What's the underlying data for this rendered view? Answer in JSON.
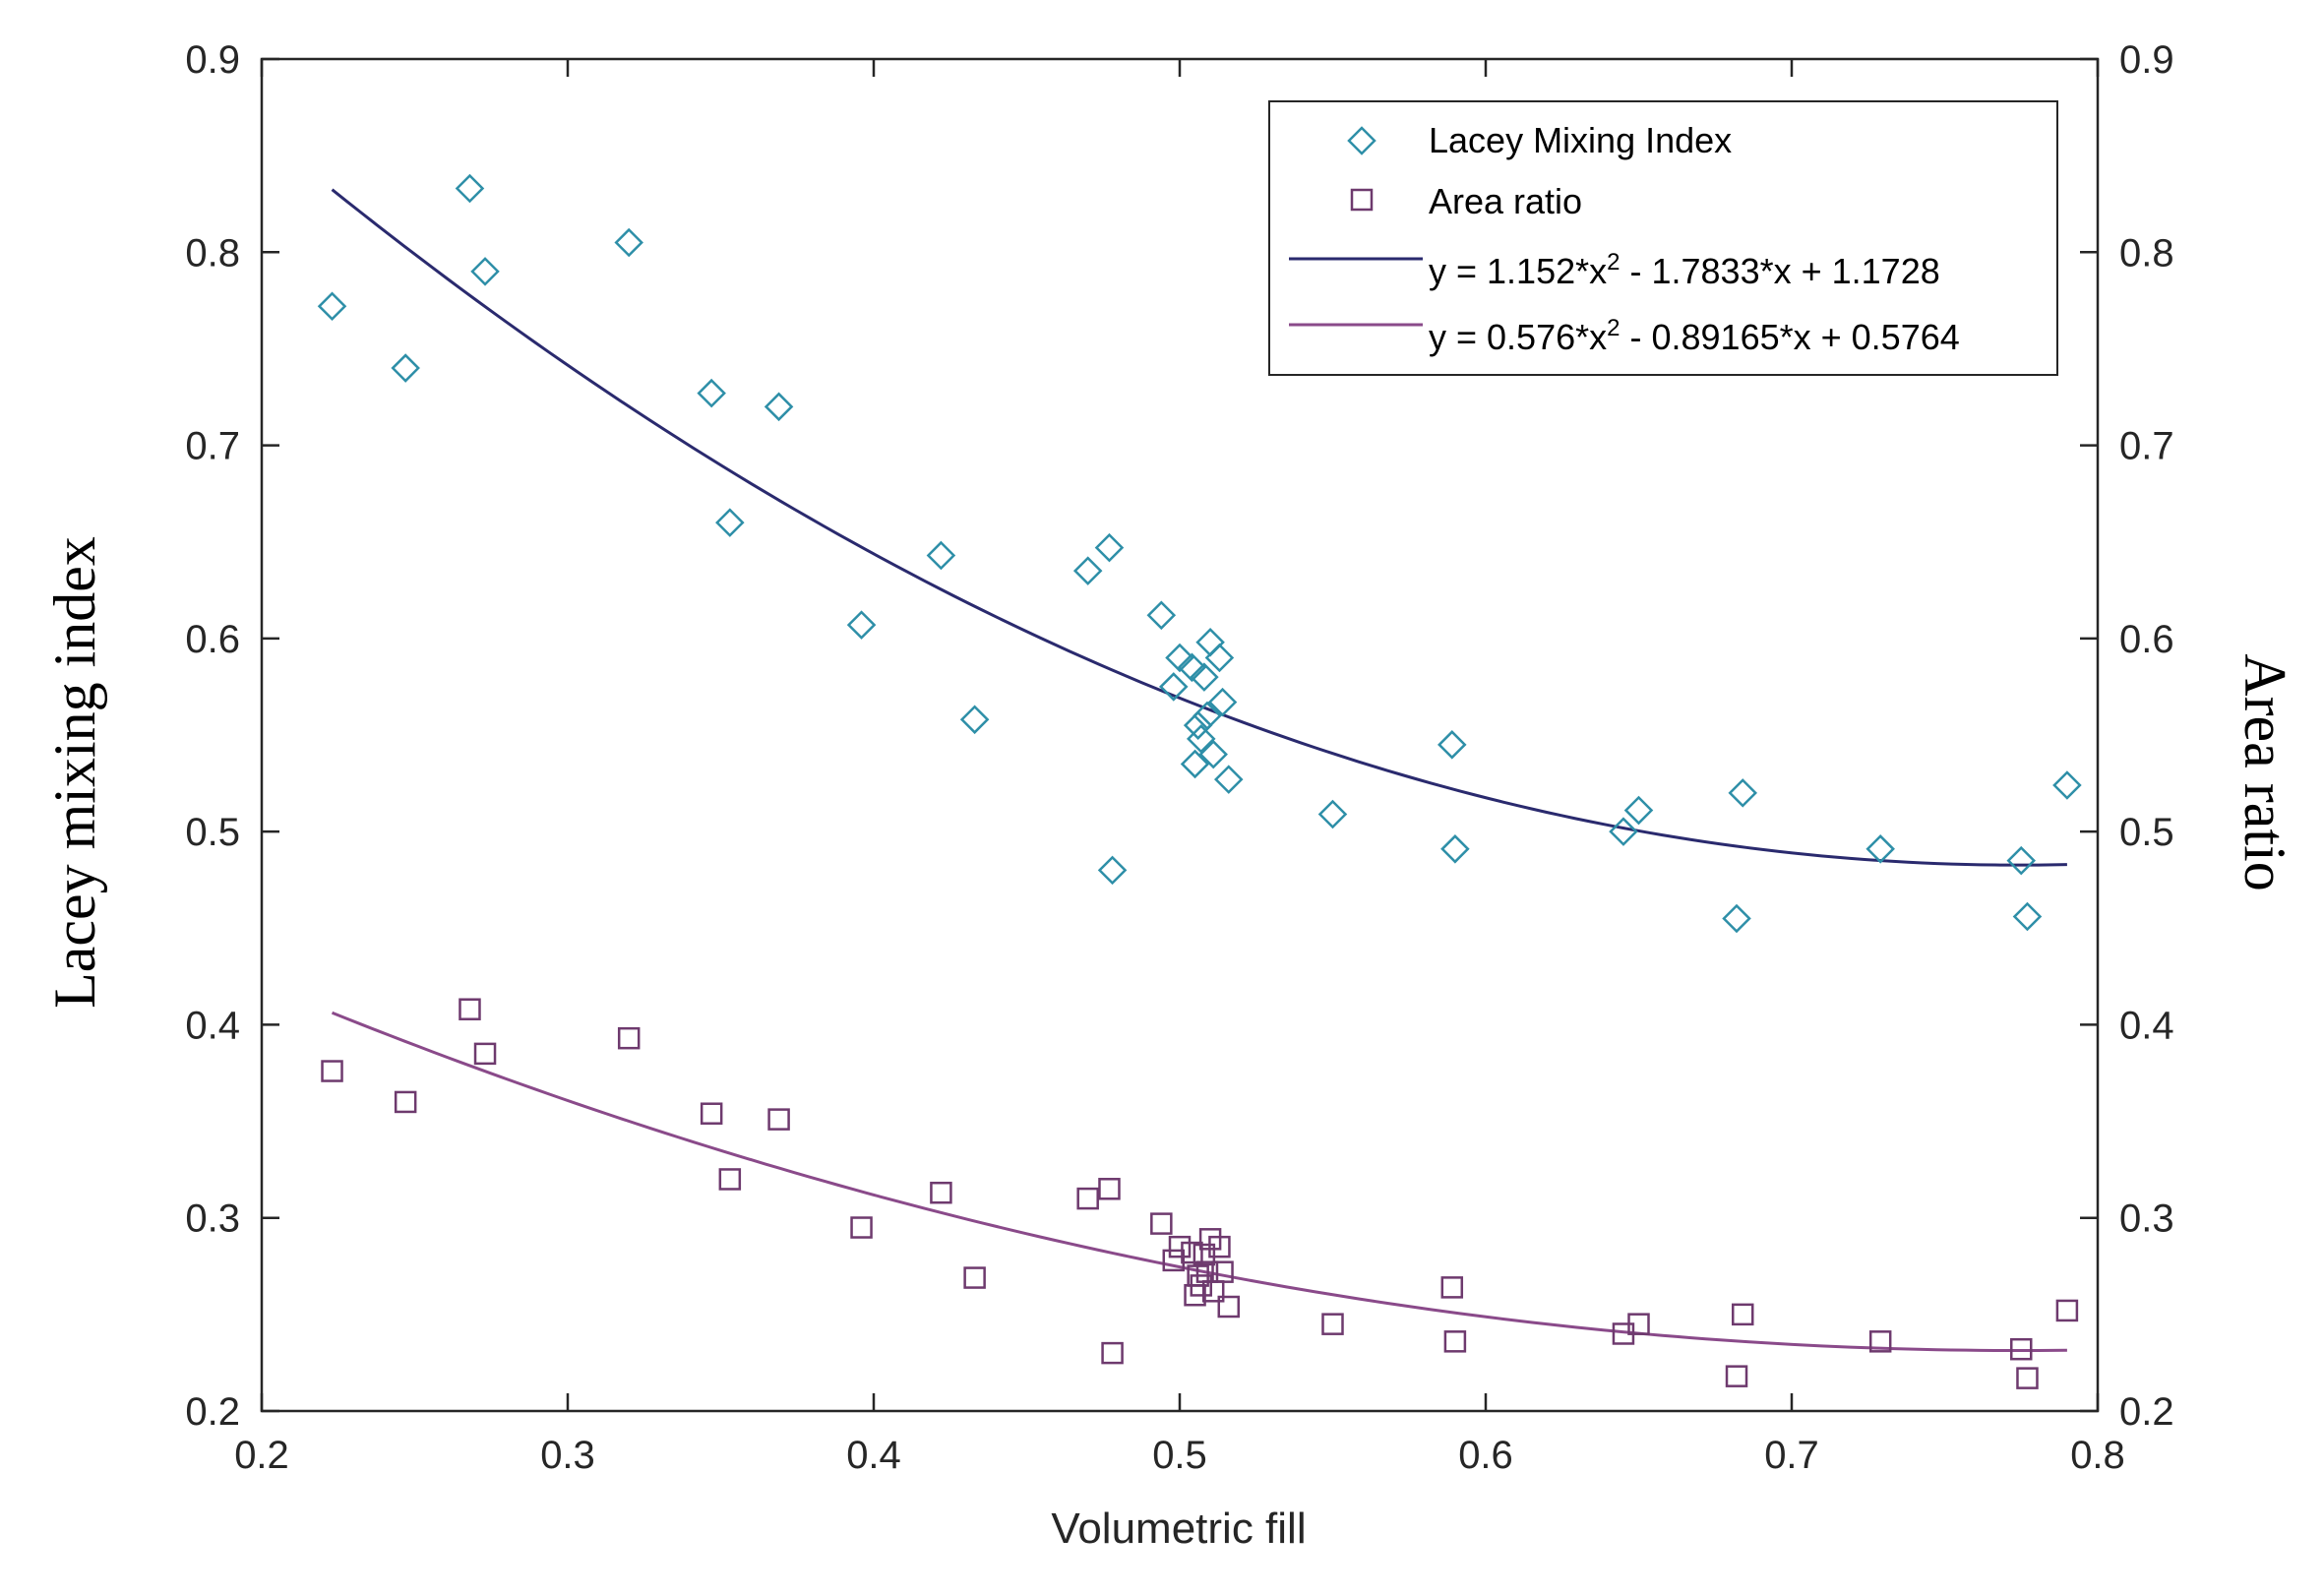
{
  "colors": {
    "lacey_marker": "#2e8fa8",
    "area_marker": "#6e3a6e",
    "fit1_line": "#2a2a6e",
    "fit2_line": "#8a4a8a",
    "axis": "#262626",
    "background": "#ffffff"
  },
  "chart_data": {
    "type": "scatter",
    "title": "",
    "xlabel": "Volumetric fill",
    "ylabel_left": "Lacey mixing index",
    "ylabel_right": "Area ratio",
    "xlim": [
      0.2,
      0.8
    ],
    "ylim": [
      0.2,
      0.9
    ],
    "xticks": [
      "0.2",
      "0.3",
      "0.4",
      "0.5",
      "0.6",
      "0.7",
      "0.8"
    ],
    "yticks": [
      "0.2",
      "0.3",
      "0.4",
      "0.5",
      "0.6",
      "0.7",
      "0.8",
      "0.9"
    ],
    "grid": false,
    "legend_position": "top-right",
    "legend": [
      {
        "label": "Lacey Mixing Index",
        "kind": "marker",
        "marker": "diamond",
        "color_key": "lacey_marker"
      },
      {
        "label": "Area ratio",
        "kind": "marker",
        "marker": "square",
        "color_key": "area_marker"
      },
      {
        "label": "y = 1.152*x",
        "sup": "2",
        "rest": " - 1.7833*x + 1.1728",
        "kind": "line",
        "color_key": "fit1_line"
      },
      {
        "label": "y = 0.576*x",
        "sup": "2",
        "rest": " - 0.89165*x + 0.5764",
        "kind": "line",
        "color_key": "fit2_line"
      }
    ],
    "series": [
      {
        "name": "Lacey Mixing Index",
        "marker": "diamond",
        "color_key": "lacey_marker",
        "points": [
          [
            0.223,
            0.772
          ],
          [
            0.247,
            0.74
          ],
          [
            0.268,
            0.833
          ],
          [
            0.273,
            0.79
          ],
          [
            0.32,
            0.805
          ],
          [
            0.347,
            0.727
          ],
          [
            0.353,
            0.66
          ],
          [
            0.369,
            0.72
          ],
          [
            0.396,
            0.607
          ],
          [
            0.422,
            0.643
          ],
          [
            0.433,
            0.558
          ],
          [
            0.47,
            0.635
          ],
          [
            0.477,
            0.647
          ],
          [
            0.478,
            0.48
          ],
          [
            0.494,
            0.612
          ],
          [
            0.498,
            0.575
          ],
          [
            0.5,
            0.59
          ],
          [
            0.504,
            0.585
          ],
          [
            0.505,
            0.535
          ],
          [
            0.506,
            0.555
          ],
          [
            0.507,
            0.548
          ],
          [
            0.508,
            0.58
          ],
          [
            0.509,
            0.56
          ],
          [
            0.51,
            0.598
          ],
          [
            0.511,
            0.54
          ],
          [
            0.513,
            0.59
          ],
          [
            0.514,
            0.567
          ],
          [
            0.516,
            0.527
          ],
          [
            0.55,
            0.509
          ],
          [
            0.589,
            0.545
          ],
          [
            0.59,
            0.491
          ],
          [
            0.645,
            0.5
          ],
          [
            0.65,
            0.511
          ],
          [
            0.682,
            0.455
          ],
          [
            0.684,
            0.52
          ],
          [
            0.729,
            0.491
          ],
          [
            0.775,
            0.485
          ],
          [
            0.777,
            0.456
          ],
          [
            0.79,
            0.524
          ]
        ]
      },
      {
        "name": "Area ratio",
        "marker": "square",
        "color_key": "area_marker",
        "points": [
          [
            0.223,
            0.376
          ],
          [
            0.247,
            0.36
          ],
          [
            0.268,
            0.408
          ],
          [
            0.273,
            0.385
          ],
          [
            0.32,
            0.393
          ],
          [
            0.347,
            0.354
          ],
          [
            0.353,
            0.32
          ],
          [
            0.369,
            0.351
          ],
          [
            0.396,
            0.295
          ],
          [
            0.422,
            0.313
          ],
          [
            0.433,
            0.269
          ],
          [
            0.47,
            0.31
          ],
          [
            0.477,
            0.315
          ],
          [
            0.478,
            0.23
          ],
          [
            0.494,
            0.297
          ],
          [
            0.498,
            0.278
          ],
          [
            0.5,
            0.285
          ],
          [
            0.504,
            0.282
          ],
          [
            0.505,
            0.26
          ],
          [
            0.506,
            0.27
          ],
          [
            0.507,
            0.265
          ],
          [
            0.508,
            0.281
          ],
          [
            0.509,
            0.272
          ],
          [
            0.51,
            0.289
          ],
          [
            0.511,
            0.262
          ],
          [
            0.513,
            0.285
          ],
          [
            0.514,
            0.272
          ],
          [
            0.516,
            0.254
          ],
          [
            0.55,
            0.245
          ],
          [
            0.589,
            0.264
          ],
          [
            0.59,
            0.236
          ],
          [
            0.645,
            0.24
          ],
          [
            0.65,
            0.245
          ],
          [
            0.682,
            0.218
          ],
          [
            0.684,
            0.25
          ],
          [
            0.729,
            0.236
          ],
          [
            0.775,
            0.232
          ],
          [
            0.777,
            0.217
          ],
          [
            0.79,
            0.252
          ]
        ]
      }
    ],
    "fits": [
      {
        "name": "Lacey fit",
        "a": 1.152,
        "b": -1.7833,
        "c": 1.1728,
        "x_range": [
          0.223,
          0.79
        ],
        "color_key": "fit1_line"
      },
      {
        "name": "Area ratio fit",
        "a": 0.576,
        "b": -0.89165,
        "c": 0.5764,
        "x_range": [
          0.223,
          0.79
        ],
        "color_key": "fit2_line"
      }
    ]
  }
}
